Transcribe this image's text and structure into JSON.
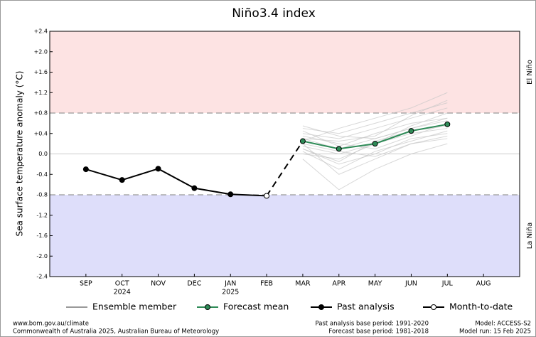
{
  "chart_data": {
    "type": "line",
    "title": "Niño3.4 index",
    "y_label": "Sea surface temperature anomaly (°C)",
    "categories": [
      "SEP",
      "OCT",
      "NOV",
      "DEC",
      "JAN",
      "FEB",
      "MAR",
      "APR",
      "MAY",
      "JUN",
      "JUL",
      "AUG"
    ],
    "category_sublabels": [
      null,
      "2024",
      null,
      null,
      "2025",
      null,
      null,
      null,
      null,
      null,
      null,
      null
    ],
    "ylim": [
      -2.4,
      2.4
    ],
    "yticks": [
      {
        "value": 2.4,
        "label": "+2.4"
      },
      {
        "value": 2.0,
        "label": "+2.0"
      },
      {
        "value": 1.6,
        "label": "+1.6"
      },
      {
        "value": 1.2,
        "label": "+1.2"
      },
      {
        "value": 0.8,
        "label": "+0.8"
      },
      {
        "value": 0.4,
        "label": "+0.4"
      },
      {
        "value": 0,
        "label": "0.0"
      },
      {
        "value": -0.4,
        "label": "-0.4"
      },
      {
        "value": -0.8,
        "label": "-0.8"
      },
      {
        "value": -1.2,
        "label": "-1.2"
      },
      {
        "value": -1.6,
        "label": "-1.6"
      },
      {
        "value": -2.0,
        "label": "-2.0"
      },
      {
        "value": -2.4,
        "label": "-2.4"
      }
    ],
    "regions": [
      {
        "name": "El Niño",
        "from": 0.8,
        "to": 2.4,
        "color": "#fde3e3",
        "label_color": "#e08a8a"
      },
      {
        "name": "La Niña",
        "from": -2.4,
        "to": -0.8,
        "color": "#dedefa",
        "label_color": "#8a8ac8"
      }
    ],
    "series": [
      {
        "name": "Ensemble member",
        "color": "#c8c8c8",
        "members": [
          [
            null,
            null,
            null,
            null,
            null,
            null,
            0.3,
            0.1,
            0.3,
            0.5,
            0.7,
            null
          ],
          [
            null,
            null,
            null,
            null,
            null,
            null,
            0.1,
            -0.2,
            0.0,
            0.3,
            0.4,
            null
          ],
          [
            null,
            null,
            null,
            null,
            null,
            null,
            0.5,
            0.4,
            0.6,
            0.8,
            1.0,
            null
          ],
          [
            null,
            null,
            null,
            null,
            null,
            null,
            0.2,
            -0.4,
            -0.1,
            0.2,
            0.3,
            null
          ],
          [
            null,
            null,
            null,
            null,
            null,
            null,
            0.4,
            0.3,
            0.5,
            0.7,
            0.9,
            null
          ],
          [
            null,
            null,
            null,
            null,
            null,
            null,
            0.0,
            -0.1,
            0.2,
            0.4,
            0.5,
            null
          ],
          [
            null,
            null,
            null,
            null,
            null,
            null,
            0.35,
            0.2,
            0.1,
            0.35,
            0.6,
            null
          ],
          [
            null,
            null,
            null,
            null,
            null,
            null,
            -0.1,
            -0.7,
            -0.3,
            0.0,
            0.2,
            null
          ],
          [
            null,
            null,
            null,
            null,
            null,
            null,
            0.25,
            0.5,
            0.7,
            0.9,
            1.2,
            null
          ],
          [
            null,
            null,
            null,
            null,
            null,
            null,
            0.15,
            0.0,
            0.2,
            0.55,
            0.8,
            null
          ],
          [
            null,
            null,
            null,
            null,
            null,
            null,
            0.45,
            0.15,
            0.4,
            0.6,
            0.7,
            null
          ],
          [
            null,
            null,
            null,
            null,
            null,
            null,
            0.05,
            -0.3,
            0.05,
            0.25,
            0.45,
            null
          ],
          [
            null,
            null,
            null,
            null,
            null,
            null,
            0.3,
            0.25,
            0.35,
            0.75,
            1.05,
            null
          ],
          [
            null,
            null,
            null,
            null,
            null,
            null,
            0.2,
            0.05,
            -0.05,
            0.2,
            0.35,
            null
          ],
          [
            null,
            null,
            null,
            null,
            null,
            null,
            0.55,
            0.35,
            0.3,
            0.5,
            0.65,
            null
          ],
          [
            null,
            null,
            null,
            null,
            null,
            null,
            0.1,
            -0.15,
            0.25,
            0.45,
            0.55,
            null
          ]
        ]
      },
      {
        "name": "Forecast mean",
        "color": "#2e8b57",
        "values": [
          null,
          null,
          null,
          null,
          null,
          null,
          0.25,
          0.1,
          0.2,
          0.45,
          0.58,
          null
        ]
      },
      {
        "name": "Past analysis",
        "color": "#000000",
        "values": [
          -0.3,
          -0.51,
          -0.29,
          -0.67,
          -0.79,
          null,
          null,
          null,
          null,
          null,
          null,
          null
        ]
      },
      {
        "name": "Month-to-date",
        "color": "#ffffff",
        "values": [
          null,
          null,
          null,
          null,
          null,
          -0.82,
          null,
          null,
          null,
          null,
          null,
          null
        ]
      }
    ],
    "footer": {
      "left": [
        "www.bom.gov.au/climate",
        "Commonwealth of Australia 2025, Australian Bureau of Meteorology"
      ],
      "center": [
        "Past analysis base period: 1991-2020",
        "Forecast base period: 1981-2018"
      ],
      "right": [
        "Model: ACCESS-S2",
        "Model run: 15 Feb 2025"
      ]
    }
  }
}
